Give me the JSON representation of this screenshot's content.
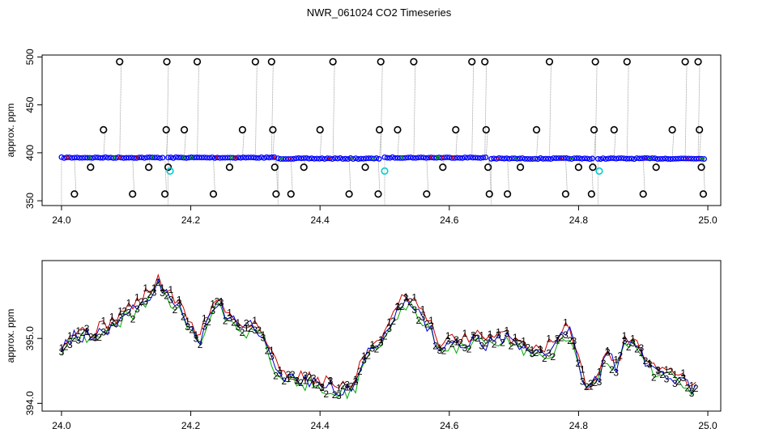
{
  "title": "NWR_061024  CO2 Timeseries",
  "chart_data": [
    {
      "type": "scatter",
      "ylabel": "approx. ppm",
      "xlim": [
        23.97,
        25.02
      ],
      "ylim": [
        345,
        502
      ],
      "x_ticks": [
        "24.0",
        "24.2",
        "24.4",
        "24.6",
        "24.8",
        "25.0"
      ],
      "y_ticks": [
        "350",
        "400",
        "450",
        "500"
      ],
      "baseline_ppm": 395,
      "series": [
        {
          "marker": "dense circles",
          "color": "#0000ff",
          "x_range": [
            24.0,
            24.995
          ],
          "segments": [
            {
              "x": [
                24.0,
                24.16
              ],
              "y": 395
            },
            {
              "x": [
                24.165,
                24.33
              ],
              "y": 395
            },
            {
              "x": [
                24.335,
                24.495
              ],
              "y": 394
            },
            {
              "x": [
                24.5,
                24.66
              ],
              "y": 395
            },
            {
              "x": [
                24.665,
                24.825
              ],
              "y": 394
            },
            {
              "x": [
                24.83,
                24.995
              ],
              "y": 394
            }
          ]
        },
        {
          "marker": "open circle",
          "color": "#000000",
          "points": [
            [
              24.02,
              357
            ],
            [
              24.045,
              385
            ],
            [
              24.065,
              424
            ],
            [
              24.09,
              495
            ],
            [
              24.11,
              357
            ],
            [
              24.135,
              385
            ],
            [
              24.16,
              357
            ],
            [
              24.162,
              424
            ],
            [
              24.163,
              495
            ],
            [
              24.165,
              385
            ],
            [
              24.19,
              424
            ],
            [
              24.21,
              495
            ],
            [
              24.235,
              357
            ],
            [
              24.26,
              385
            ],
            [
              24.28,
              424
            ],
            [
              24.3,
              495
            ],
            [
              24.325,
              495
            ],
            [
              24.327,
              424
            ],
            [
              24.33,
              385
            ],
            [
              24.332,
              357
            ],
            [
              24.355,
              357
            ],
            [
              24.375,
              385
            ],
            [
              24.4,
              424
            ],
            [
              24.42,
              495
            ],
            [
              24.445,
              357
            ],
            [
              24.47,
              385
            ],
            [
              24.49,
              357
            ],
            [
              24.492,
              424
            ],
            [
              24.494,
              495
            ],
            [
              24.52,
              424
            ],
            [
              24.545,
              495
            ],
            [
              24.565,
              357
            ],
            [
              24.59,
              385
            ],
            [
              24.61,
              424
            ],
            [
              24.635,
              495
            ],
            [
              24.655,
              495
            ],
            [
              24.657,
              424
            ],
            [
              24.66,
              385
            ],
            [
              24.662,
              357
            ],
            [
              24.69,
              357
            ],
            [
              24.71,
              385
            ],
            [
              24.735,
              424
            ],
            [
              24.755,
              495
            ],
            [
              24.78,
              357
            ],
            [
              24.8,
              385
            ],
            [
              24.82,
              357
            ],
            [
              24.822,
              385
            ],
            [
              24.824,
              424
            ],
            [
              24.826,
              495
            ],
            [
              24.855,
              424
            ],
            [
              24.875,
              495
            ],
            [
              24.9,
              357
            ],
            [
              24.92,
              385
            ],
            [
              24.945,
              424
            ],
            [
              24.965,
              495
            ],
            [
              24.985,
              495
            ],
            [
              24.987,
              424
            ],
            [
              24.99,
              385
            ],
            [
              24.993,
              357
            ]
          ]
        },
        {
          "marker": "open circle",
          "color": "#00cccc",
          "points": [
            [
              24.168,
              381
            ],
            [
              24.5,
              381
            ],
            [
              24.832,
              381
            ]
          ]
        }
      ]
    },
    {
      "type": "line",
      "ylabel": "approx. ppm",
      "xlim": [
        23.97,
        25.02
      ],
      "ylim": [
        393.88,
        396.2
      ],
      "x_ticks": [
        "24.0",
        "24.2",
        "24.4",
        "24.6",
        "24.8",
        "25.0"
      ],
      "y_ticks": [
        "394.0",
        "395.0"
      ],
      "markers": [
        "1",
        "2",
        "3"
      ],
      "series": [
        {
          "name": "1",
          "color": "#cc0000",
          "offset": 0.06
        },
        {
          "name": "2",
          "color": "#00aa00",
          "offset": -0.05
        },
        {
          "name": "3",
          "color": "#0000cc",
          "offset": 0.0
        }
      ],
      "base_curve": [
        [
          24.0,
          394.9
        ],
        [
          24.02,
          395.05
        ],
        [
          24.05,
          395.05
        ],
        [
          24.07,
          395.15
        ],
        [
          24.1,
          395.4
        ],
        [
          24.12,
          395.5
        ],
        [
          24.15,
          395.85
        ],
        [
          24.17,
          395.6
        ],
        [
          24.19,
          395.35
        ],
        [
          24.205,
          395.1
        ],
        [
          24.215,
          395.0
        ],
        [
          24.225,
          395.3
        ],
        [
          24.24,
          395.55
        ],
        [
          24.26,
          395.3
        ],
        [
          24.28,
          395.15
        ],
        [
          24.3,
          395.2
        ],
        [
          24.31,
          395.05
        ],
        [
          24.32,
          394.8
        ],
        [
          24.335,
          394.5
        ],
        [
          24.35,
          394.4
        ],
        [
          24.38,
          394.35
        ],
        [
          24.4,
          394.3
        ],
        [
          24.42,
          394.25
        ],
        [
          24.44,
          394.2
        ],
        [
          24.455,
          394.3
        ],
        [
          24.465,
          394.6
        ],
        [
          24.48,
          394.85
        ],
        [
          24.5,
          395.05
        ],
        [
          24.515,
          395.3
        ],
        [
          24.53,
          395.6
        ],
        [
          24.55,
          395.45
        ],
        [
          24.57,
          395.15
        ],
        [
          24.585,
          394.85
        ],
        [
          24.6,
          394.9
        ],
        [
          24.62,
          394.95
        ],
        [
          24.64,
          395.0
        ],
        [
          24.66,
          394.9
        ],
        [
          24.68,
          395.0
        ],
        [
          24.7,
          394.95
        ],
        [
          24.72,
          394.85
        ],
        [
          24.74,
          394.8
        ],
        [
          24.76,
          394.85
        ],
        [
          24.775,
          395.15
        ],
        [
          24.79,
          395.05
        ],
        [
          24.8,
          394.6
        ],
        [
          24.81,
          394.25
        ],
        [
          24.83,
          394.35
        ],
        [
          24.845,
          394.75
        ],
        [
          24.86,
          394.55
        ],
        [
          24.875,
          395.0
        ],
        [
          24.89,
          394.9
        ],
        [
          24.905,
          394.65
        ],
        [
          24.92,
          394.5
        ],
        [
          24.94,
          394.45
        ],
        [
          24.96,
          394.35
        ],
        [
          24.98,
          394.2
        ]
      ]
    }
  ]
}
